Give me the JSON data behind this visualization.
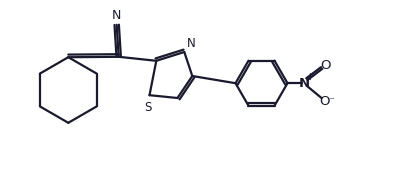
{
  "bg_color": "#ffffff",
  "line_color": "#1a1a2e",
  "line_width": 1.6,
  "fig_width": 3.95,
  "fig_height": 1.72,
  "dpi": 100,
  "xlim": [
    0.0,
    9.5
  ],
  "ylim": [
    0.5,
    4.8
  ]
}
